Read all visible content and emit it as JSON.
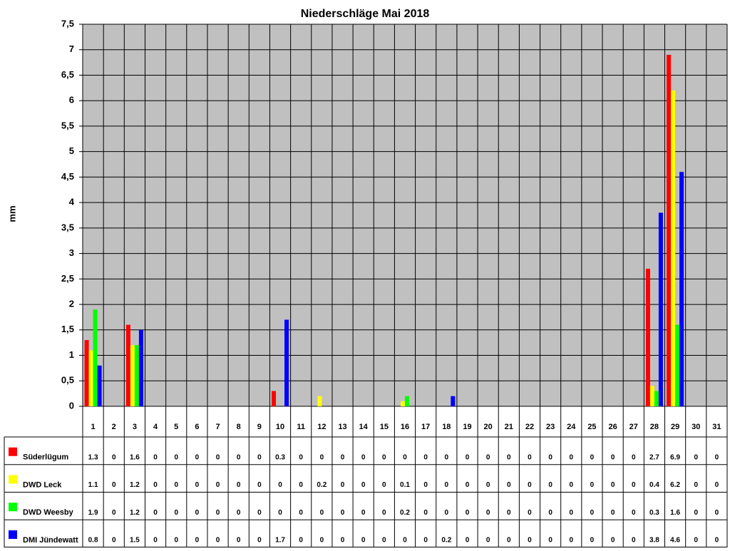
{
  "chart_data": {
    "type": "bar",
    "title": "Niederschläge Mai 2018",
    "y_label": "mm",
    "categories": [
      "1",
      "2",
      "3",
      "4",
      "5",
      "6",
      "7",
      "8",
      "9",
      "10",
      "11",
      "12",
      "13",
      "14",
      "15",
      "16",
      "17",
      "18",
      "19",
      "20",
      "21",
      "22",
      "23",
      "24",
      "25",
      "26",
      "27",
      "28",
      "29",
      "30",
      "31"
    ],
    "series": [
      {
        "name": "Süderlügum",
        "color": "#ff0000",
        "values": [
          1.3,
          0,
          1.6,
          0,
          0,
          0,
          0,
          0,
          0,
          0.3,
          0,
          0,
          0,
          0,
          0,
          0,
          0,
          0,
          0,
          0,
          0,
          0,
          0,
          0,
          0,
          0,
          0,
          2.7,
          6.9,
          0,
          0
        ]
      },
      {
        "name": "DWD Leck",
        "color": "#ffff00",
        "values": [
          1.1,
          0,
          1.2,
          0,
          0,
          0,
          0,
          0,
          0,
          0,
          0,
          0.2,
          0,
          0,
          0,
          0.1,
          0,
          0,
          0,
          0,
          0,
          0,
          0,
          0,
          0,
          0,
          0,
          0.4,
          6.2,
          0,
          0
        ]
      },
      {
        "name": "DWD Weesby",
        "color": "#00ff00",
        "values": [
          1.9,
          0,
          1.2,
          0,
          0,
          0,
          0,
          0,
          0,
          0,
          0,
          0,
          0,
          0,
          0,
          0.2,
          0,
          0,
          0,
          0,
          0,
          0,
          0,
          0,
          0,
          0,
          0,
          0.3,
          1.6,
          0,
          0
        ]
      },
      {
        "name": "DMI Jündewatt",
        "color": "#0000ff",
        "values": [
          0.8,
          0,
          1.5,
          0,
          0,
          0,
          0,
          0,
          0,
          1.7,
          0,
          0,
          0,
          0,
          0,
          0,
          0,
          0.2,
          0,
          0,
          0,
          0,
          0,
          0,
          0,
          0,
          0,
          3.8,
          4.6,
          0,
          0
        ]
      }
    ],
    "ylim": [
      0,
      7.5
    ],
    "yticks": [
      0,
      {
        "value": 0.5,
        "label": "0,5"
      },
      1,
      {
        "value": 1.5,
        "label": "1,5"
      },
      2,
      {
        "value": 2.5,
        "label": "2,5"
      },
      3,
      {
        "value": 3.5,
        "label": "3,5"
      },
      4,
      {
        "value": 4.5,
        "label": "4,5"
      },
      5,
      {
        "value": 5.5,
        "label": "5,5"
      },
      6,
      {
        "value": 6.5,
        "label": "6,5"
      },
      7,
      {
        "value": 7.5,
        "label": "7,5"
      }
    ],
    "grid": true,
    "plot_background": "#c0c0c0"
  }
}
